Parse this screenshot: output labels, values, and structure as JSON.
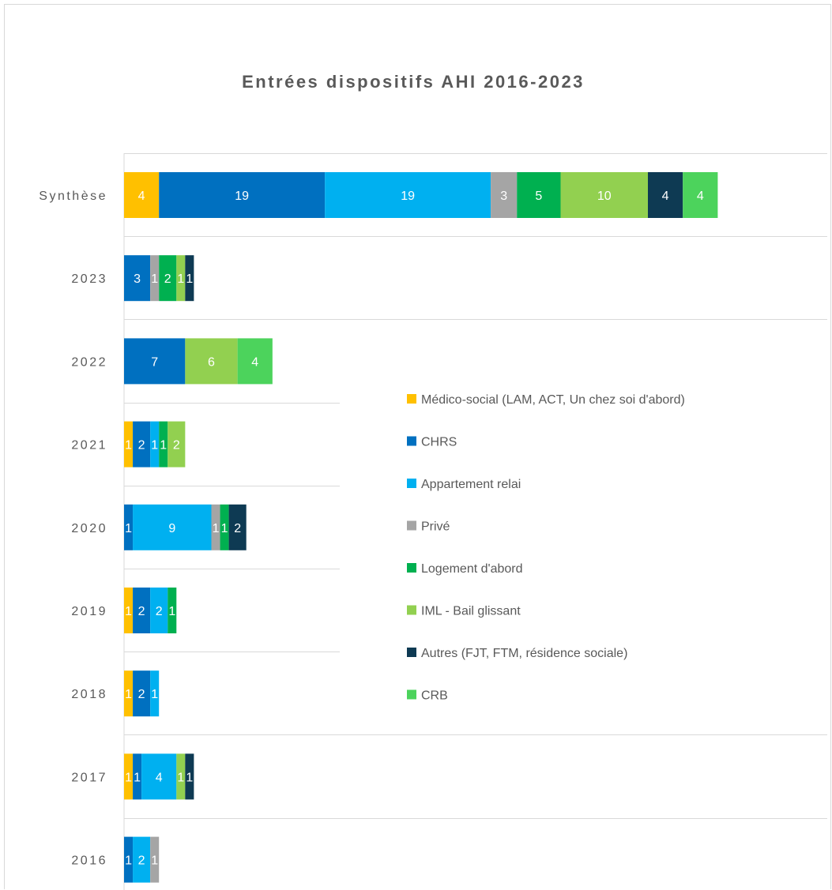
{
  "chart_data": {
    "type": "bar",
    "orientation": "horizontal",
    "stacked": true,
    "title": "Entrées dispositifs AHI  2016-2023",
    "categories": [
      "Synthèse",
      "2023",
      "2022",
      "2021",
      "2020",
      "2019",
      "2018",
      "2017",
      "2016"
    ],
    "series": [
      {
        "name": "Médico-social (LAM, ACT, Un chez soi d'abord)",
        "color": "#FFC000",
        "values": [
          4,
          0,
          0,
          1,
          0,
          1,
          1,
          1,
          0
        ]
      },
      {
        "name": "CHRS",
        "color": "#0070C0",
        "values": [
          19,
          3,
          7,
          2,
          1,
          2,
          2,
          1,
          1
        ]
      },
      {
        "name": "Appartement relai",
        "color": "#00B0F0",
        "values": [
          19,
          0,
          0,
          1,
          9,
          2,
          1,
          4,
          2
        ]
      },
      {
        "name": "Privé",
        "color": "#A5A5A5",
        "values": [
          3,
          1,
          0,
          0,
          1,
          0,
          0,
          0,
          1
        ]
      },
      {
        "name": "Logement d'abord",
        "color": "#00B050",
        "values": [
          5,
          2,
          0,
          1,
          1,
          1,
          0,
          0,
          0
        ]
      },
      {
        "name": "IML - Bail glissant",
        "color": "#92D050",
        "values": [
          10,
          1,
          6,
          2,
          0,
          0,
          0,
          1,
          0
        ]
      },
      {
        "name": "Autres (FJT, FTM, résidence sociale)",
        "color": "#0E3A53",
        "values": [
          4,
          1,
          0,
          0,
          2,
          0,
          0,
          1,
          0
        ]
      },
      {
        "name": "CRB",
        "color": "#4CD35C",
        "values": [
          4,
          0,
          4,
          0,
          0,
          0,
          0,
          0,
          0
        ]
      }
    ],
    "xlim": [
      0,
      80
    ],
    "grid": true,
    "legend": "right",
    "data_labels": true
  }
}
